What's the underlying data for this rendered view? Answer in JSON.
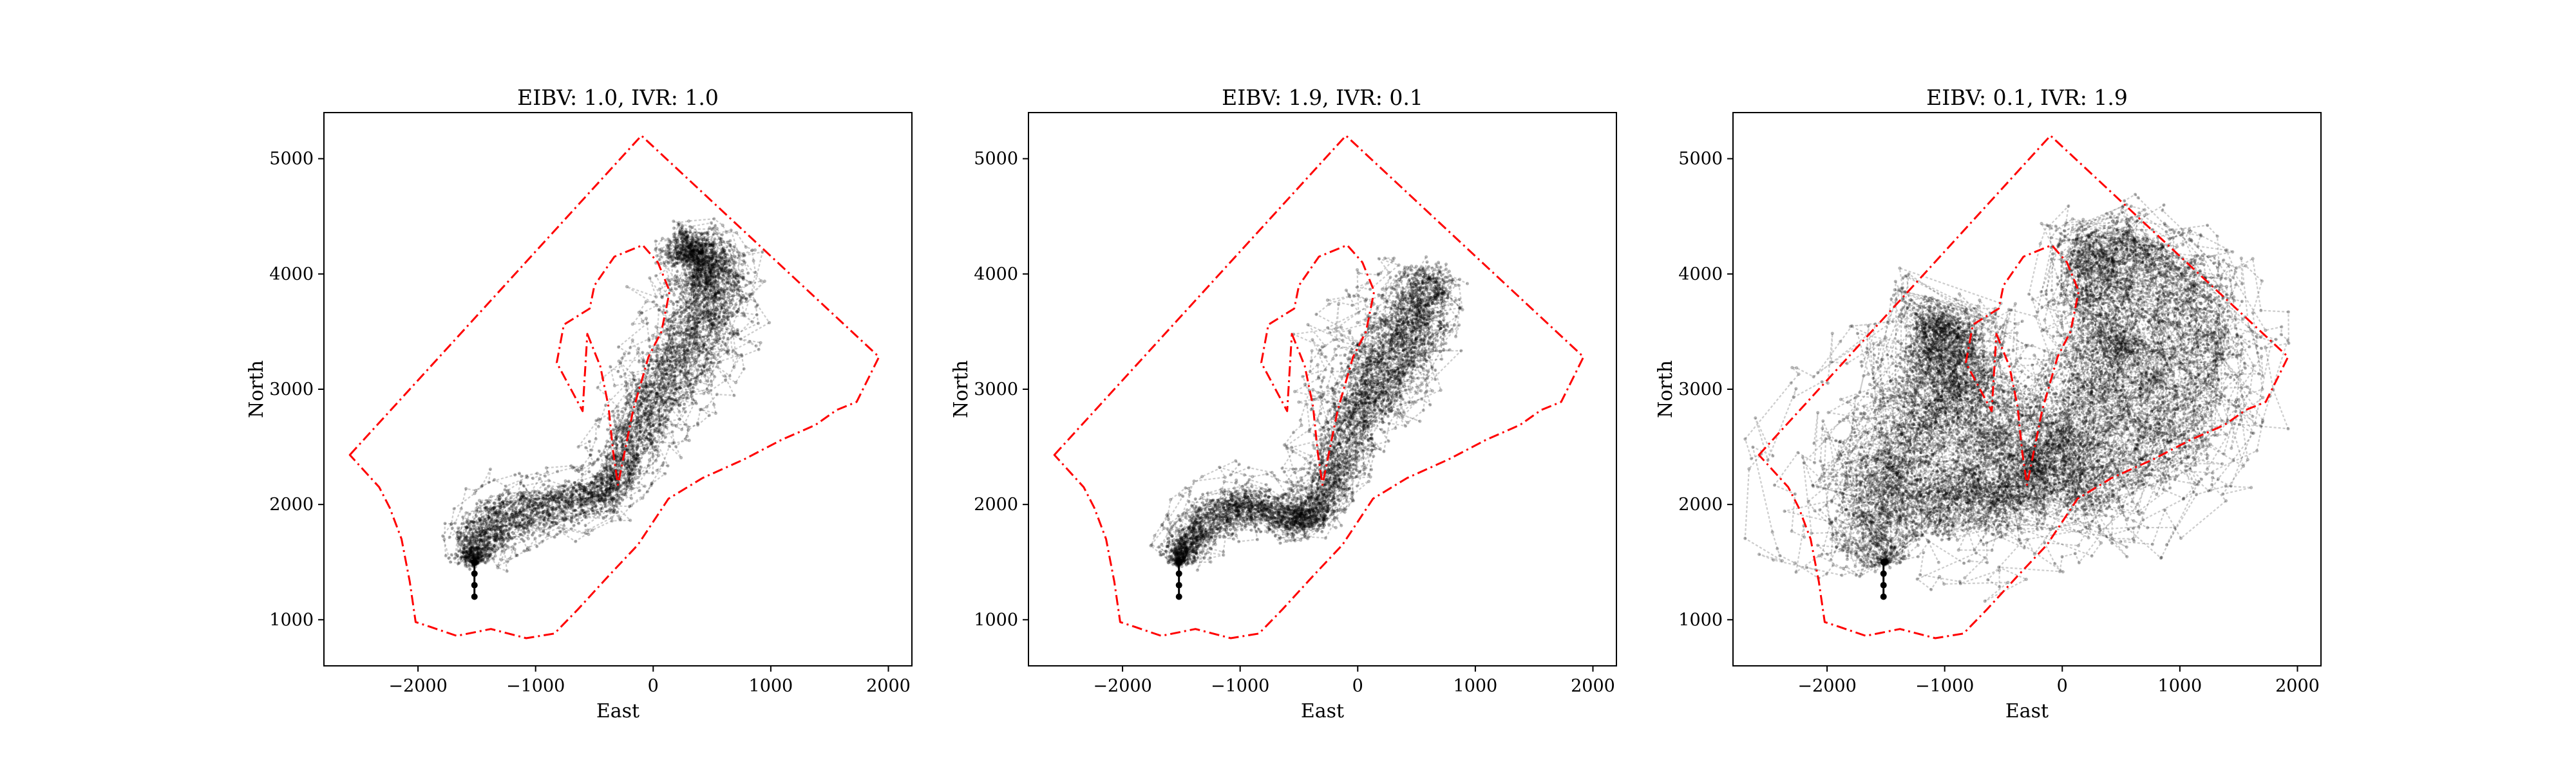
{
  "chart_data": [
    {
      "type": "line",
      "title": "EIBV: 1.0, IVR: 1.0",
      "xlabel": "East",
      "ylabel": "North",
      "xlim": [
        -2800,
        2200
      ],
      "ylim": [
        600,
        5400
      ],
      "xticks": [
        -2000,
        -1000,
        0,
        1000,
        2000
      ],
      "yticks": [
        1000,
        2000,
        3000,
        4000,
        5000
      ],
      "xtick_labels": [
        "−2000",
        "−1000",
        "0",
        "1000",
        "2000"
      ],
      "ytick_labels": [
        "1000",
        "2000",
        "3000",
        "4000",
        "5000"
      ],
      "grid": false,
      "series": [
        {
          "role": "outer_boundary",
          "color": "#ff0000",
          "style": "dash-dot",
          "x": [
            -2580,
            -100,
            1920,
            1730,
            1560,
            1380,
            1090,
            770,
            420,
            130,
            -130,
            -380,
            -640,
            -840,
            -1080,
            -1380,
            -1670,
            -1900,
            -2020,
            -2070,
            -2140,
            -2240,
            -2330,
            -2580
          ],
          "y": [
            2430,
            5200,
            3280,
            2890,
            2820,
            2690,
            2560,
            2390,
            2230,
            2050,
            1650,
            1380,
            1090,
            880,
            840,
            920,
            860,
            940,
            980,
            1330,
            1700,
            1970,
            2150,
            2430
          ]
        },
        {
          "role": "inner_boundary",
          "color": "#ff0000",
          "style": "dash-dot",
          "x": [
            -560,
            -450,
            -380,
            -340,
            -300,
            -170,
            -40,
            70,
            140,
            40,
            -90,
            -330,
            -500,
            -540,
            -760,
            -820,
            -600,
            -560
          ],
          "y": [
            3480,
            3200,
            2850,
            2450,
            2170,
            2820,
            3280,
            3500,
            3850,
            4100,
            4250,
            4150,
            3900,
            3700,
            3560,
            3230,
            2810,
            3480
          ]
        },
        {
          "role": "start_marker",
          "color": "#000000",
          "x": [
            -1520,
            -1520,
            -1520,
            -1520
          ],
          "y": [
            1200,
            1300,
            1400,
            1500
          ]
        },
        {
          "role": "trajectory_corridor",
          "color": "#000000",
          "x": [
            -1520,
            -1540,
            -1400,
            -1150,
            -850,
            -500,
            -300,
            -190,
            -60,
            120,
            280,
            420,
            520,
            560,
            480,
            340,
            200,
            100
          ],
          "y": [
            1500,
            1620,
            1820,
            1920,
            1990,
            2040,
            2200,
            2480,
            2800,
            3050,
            3300,
            3550,
            3780,
            4000,
            4150,
            4250,
            4200,
            4050
          ],
          "spread": [
            50,
            120,
            140,
            140,
            130,
            120,
            110,
            140,
            170,
            190,
            200,
            210,
            200,
            170,
            140,
            110,
            100,
            80
          ]
        }
      ]
    },
    {
      "type": "line",
      "title": "EIBV: 1.9, IVR: 0.1",
      "xlabel": "East",
      "ylabel": "North",
      "xlim": [
        -2800,
        2200
      ],
      "ylim": [
        600,
        5400
      ],
      "xticks": [
        -2000,
        -1000,
        0,
        1000,
        2000
      ],
      "yticks": [
        1000,
        2000,
        3000,
        4000,
        5000
      ],
      "xtick_labels": [
        "−2000",
        "−1000",
        "0",
        "1000",
        "2000"
      ],
      "ytick_labels": [
        "1000",
        "2000",
        "3000",
        "4000",
        "5000"
      ],
      "grid": false,
      "series": [
        {
          "role": "outer_boundary",
          "color": "#ff0000",
          "style": "dash-dot",
          "x": [
            -2580,
            -100,
            1920,
            1730,
            1560,
            1380,
            1090,
            770,
            420,
            130,
            -130,
            -380,
            -640,
            -840,
            -1080,
            -1380,
            -1670,
            -1900,
            -2020,
            -2070,
            -2140,
            -2240,
            -2330,
            -2580
          ],
          "y": [
            2430,
            5200,
            3280,
            2890,
            2820,
            2690,
            2560,
            2390,
            2230,
            2050,
            1650,
            1380,
            1090,
            880,
            840,
            920,
            860,
            940,
            980,
            1330,
            1700,
            1970,
            2150,
            2430
          ]
        },
        {
          "role": "inner_boundary",
          "color": "#ff0000",
          "style": "dash-dot",
          "x": [
            -560,
            -450,
            -380,
            -340,
            -300,
            -170,
            -40,
            70,
            140,
            40,
            -90,
            -330,
            -500,
            -540,
            -760,
            -820,
            -600,
            -560
          ],
          "y": [
            3480,
            3200,
            2850,
            2450,
            2170,
            2820,
            3280,
            3500,
            3850,
            4100,
            4250,
            4150,
            3900,
            3700,
            3560,
            3230,
            2810,
            3480
          ]
        },
        {
          "role": "start_marker",
          "color": "#000000",
          "x": [
            -1520,
            -1520,
            -1520,
            -1520
          ],
          "y": [
            1200,
            1300,
            1400,
            1500
          ]
        },
        {
          "role": "trajectory_corridor",
          "color": "#000000",
          "x": [
            -1520,
            -1500,
            -1350,
            -1100,
            -850,
            -600,
            -420,
            -300,
            -180,
            -60,
            60,
            180,
            300,
            420,
            520,
            600,
            650
          ],
          "y": [
            1500,
            1620,
            1800,
            1980,
            2000,
            1880,
            1860,
            2050,
            2350,
            2700,
            2950,
            3150,
            3350,
            3550,
            3750,
            3950,
            4100
          ],
          "spread": [
            50,
            110,
            140,
            140,
            120,
            110,
            110,
            140,
            170,
            200,
            230,
            260,
            260,
            240,
            210,
            170,
            130
          ]
        }
      ]
    },
    {
      "type": "line",
      "title": "EIBV: 0.1, IVR: 1.9",
      "xlabel": "East",
      "ylabel": "North",
      "xlim": [
        -2800,
        2200
      ],
      "ylim": [
        600,
        5400
      ],
      "xticks": [
        -2000,
        -1000,
        0,
        1000,
        2000
      ],
      "yticks": [
        1000,
        2000,
        3000,
        4000,
        5000
      ],
      "xtick_labels": [
        "−2000",
        "−1000",
        "0",
        "1000",
        "2000"
      ],
      "ytick_labels": [
        "1000",
        "2000",
        "3000",
        "4000",
        "5000"
      ],
      "grid": false,
      "series": [
        {
          "role": "outer_boundary",
          "color": "#ff0000",
          "style": "dash-dot",
          "x": [
            -2580,
            -100,
            1920,
            1730,
            1560,
            1380,
            1090,
            770,
            420,
            130,
            -130,
            -380,
            -640,
            -840,
            -1080,
            -1380,
            -1670,
            -1900,
            -2020,
            -2070,
            -2140,
            -2240,
            -2330,
            -2580
          ],
          "y": [
            2430,
            5200,
            3280,
            2890,
            2820,
            2690,
            2560,
            2390,
            2230,
            2050,
            1650,
            1380,
            1090,
            880,
            840,
            920,
            860,
            940,
            980,
            1330,
            1700,
            1970,
            2150,
            2430
          ]
        },
        {
          "role": "inner_boundary",
          "color": "#ff0000",
          "style": "dash-dot",
          "x": [
            -560,
            -450,
            -380,
            -340,
            -300,
            -170,
            -40,
            70,
            140,
            40,
            -90,
            -330,
            -500,
            -540,
            -760,
            -820,
            -600,
            -560
          ],
          "y": [
            3480,
            3200,
            2850,
            2450,
            2170,
            2820,
            3280,
            3500,
            3850,
            4100,
            4250,
            4150,
            3900,
            3700,
            3560,
            3230,
            2810,
            3480
          ]
        },
        {
          "role": "start_marker",
          "color": "#000000",
          "x": [
            -1520,
            -1520,
            -1520,
            -1520
          ],
          "y": [
            1200,
            1300,
            1400,
            1500
          ]
        },
        {
          "role": "trajectory_cloud",
          "color": "#000000",
          "x": [
            -1500,
            -1600,
            -1700,
            -1600,
            -1350,
            -1050,
            -900,
            -1000,
            -1150,
            -900,
            -600,
            -300,
            0,
            300,
            700,
            1000,
            1200,
            1150,
            900,
            600,
            300,
            150,
            400,
            700,
            400,
            50,
            -200,
            -500,
            -800,
            -1100,
            -1400
          ],
          "y": [
            1500,
            1750,
            2050,
            2350,
            2650,
            2900,
            3250,
            3600,
            3450,
            3100,
            2800,
            2450,
            2200,
            2350,
            2550,
            2850,
            3250,
            3650,
            3950,
            4150,
            4250,
            4000,
            3650,
            3300,
            3000,
            2600,
            2200,
            2050,
            2000,
            2100,
            1850
          ],
          "spread": [
            120,
            280,
            350,
            350,
            320,
            300,
            280,
            250,
            220,
            260,
            300,
            320,
            320,
            340,
            360,
            360,
            340,
            300,
            260,
            220,
            200,
            220,
            260,
            300,
            300,
            280,
            260,
            250,
            260,
            280,
            200
          ]
        }
      ]
    }
  ]
}
